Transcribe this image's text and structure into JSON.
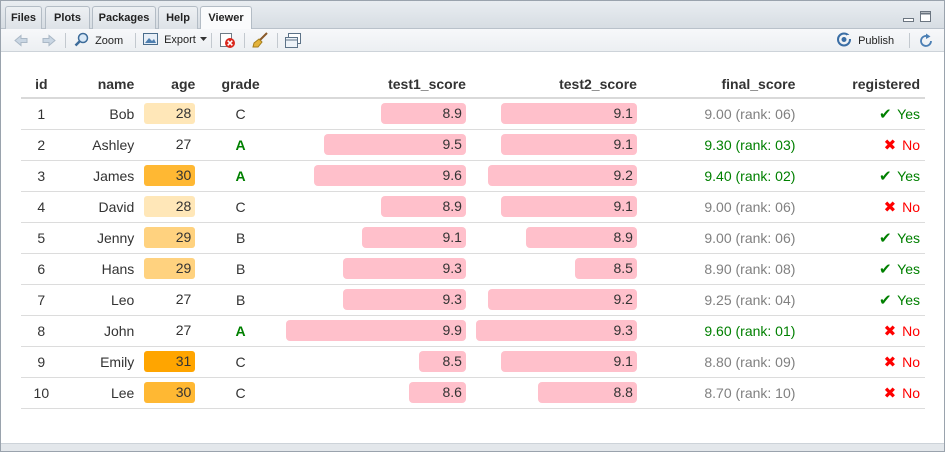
{
  "tabs": [
    {
      "label": "Files",
      "active": false
    },
    {
      "label": "Plots",
      "active": false
    },
    {
      "label": "Packages",
      "active": false
    },
    {
      "label": "Help",
      "active": false
    },
    {
      "label": "Viewer",
      "active": true
    }
  ],
  "toolbar": {
    "zoom_label": "Zoom",
    "export_label": "Export",
    "publish_label": "Publish"
  },
  "colors": {
    "age_27": "#ffffff",
    "age_28": "#ffe7b8",
    "age_29": "#ffd27f",
    "age_30": "#ffb833",
    "age_31": "#ffa500",
    "bar": "#ffc0cb",
    "high": "#008000",
    "low": "#808080",
    "no": "#ff0000"
  },
  "table": {
    "headers": {
      "id": "id",
      "name": "name",
      "age": "age",
      "grade": "grade",
      "test1": "test1_score",
      "test2": "test2_score",
      "final": "final_score",
      "registered": "registered"
    },
    "rows": [
      {
        "id": "1",
        "name": "Bob",
        "age": "28",
        "grade": "C",
        "test1": "8.9",
        "test2": "9.1",
        "final": "9.00 (rank: 06)",
        "final_high": false,
        "registered": "Yes",
        "reg_yes": true
      },
      {
        "id": "2",
        "name": "Ashley",
        "age": "27",
        "grade": "A",
        "test1": "9.5",
        "test2": "9.1",
        "final": "9.30 (rank: 03)",
        "final_high": true,
        "registered": "No",
        "reg_yes": false
      },
      {
        "id": "3",
        "name": "James",
        "age": "30",
        "grade": "A",
        "test1": "9.6",
        "test2": "9.2",
        "final": "9.40 (rank: 02)",
        "final_high": true,
        "registered": "Yes",
        "reg_yes": true
      },
      {
        "id": "4",
        "name": "David",
        "age": "28",
        "grade": "C",
        "test1": "8.9",
        "test2": "9.1",
        "final": "9.00 (rank: 06)",
        "final_high": false,
        "registered": "No",
        "reg_yes": false
      },
      {
        "id": "5",
        "name": "Jenny",
        "age": "29",
        "grade": "B",
        "test1": "9.1",
        "test2": "8.9",
        "final": "9.00 (rank: 06)",
        "final_high": false,
        "registered": "Yes",
        "reg_yes": true
      },
      {
        "id": "6",
        "name": "Hans",
        "age": "29",
        "grade": "B",
        "test1": "9.3",
        "test2": "8.5",
        "final": "8.90 (rank: 08)",
        "final_high": false,
        "registered": "Yes",
        "reg_yes": true
      },
      {
        "id": "7",
        "name": "Leo",
        "age": "27",
        "grade": "B",
        "test1": "9.3",
        "test2": "9.2",
        "final": "9.25 (rank: 04)",
        "final_high": false,
        "registered": "Yes",
        "reg_yes": true
      },
      {
        "id": "8",
        "name": "John",
        "age": "27",
        "grade": "A",
        "test1": "9.9",
        "test2": "9.3",
        "final": "9.60 (rank: 01)",
        "final_high": true,
        "registered": "No",
        "reg_yes": false
      },
      {
        "id": "9",
        "name": "Emily",
        "age": "31",
        "grade": "C",
        "test1": "8.5",
        "test2": "9.1",
        "final": "8.80 (rank: 09)",
        "final_high": false,
        "registered": "No",
        "reg_yes": false
      },
      {
        "id": "10",
        "name": "Lee",
        "age": "30",
        "grade": "C",
        "test1": "8.6",
        "test2": "8.8",
        "final": "8.70 (rank: 10)",
        "final_high": false,
        "registered": "No",
        "reg_yes": false
      }
    ]
  }
}
